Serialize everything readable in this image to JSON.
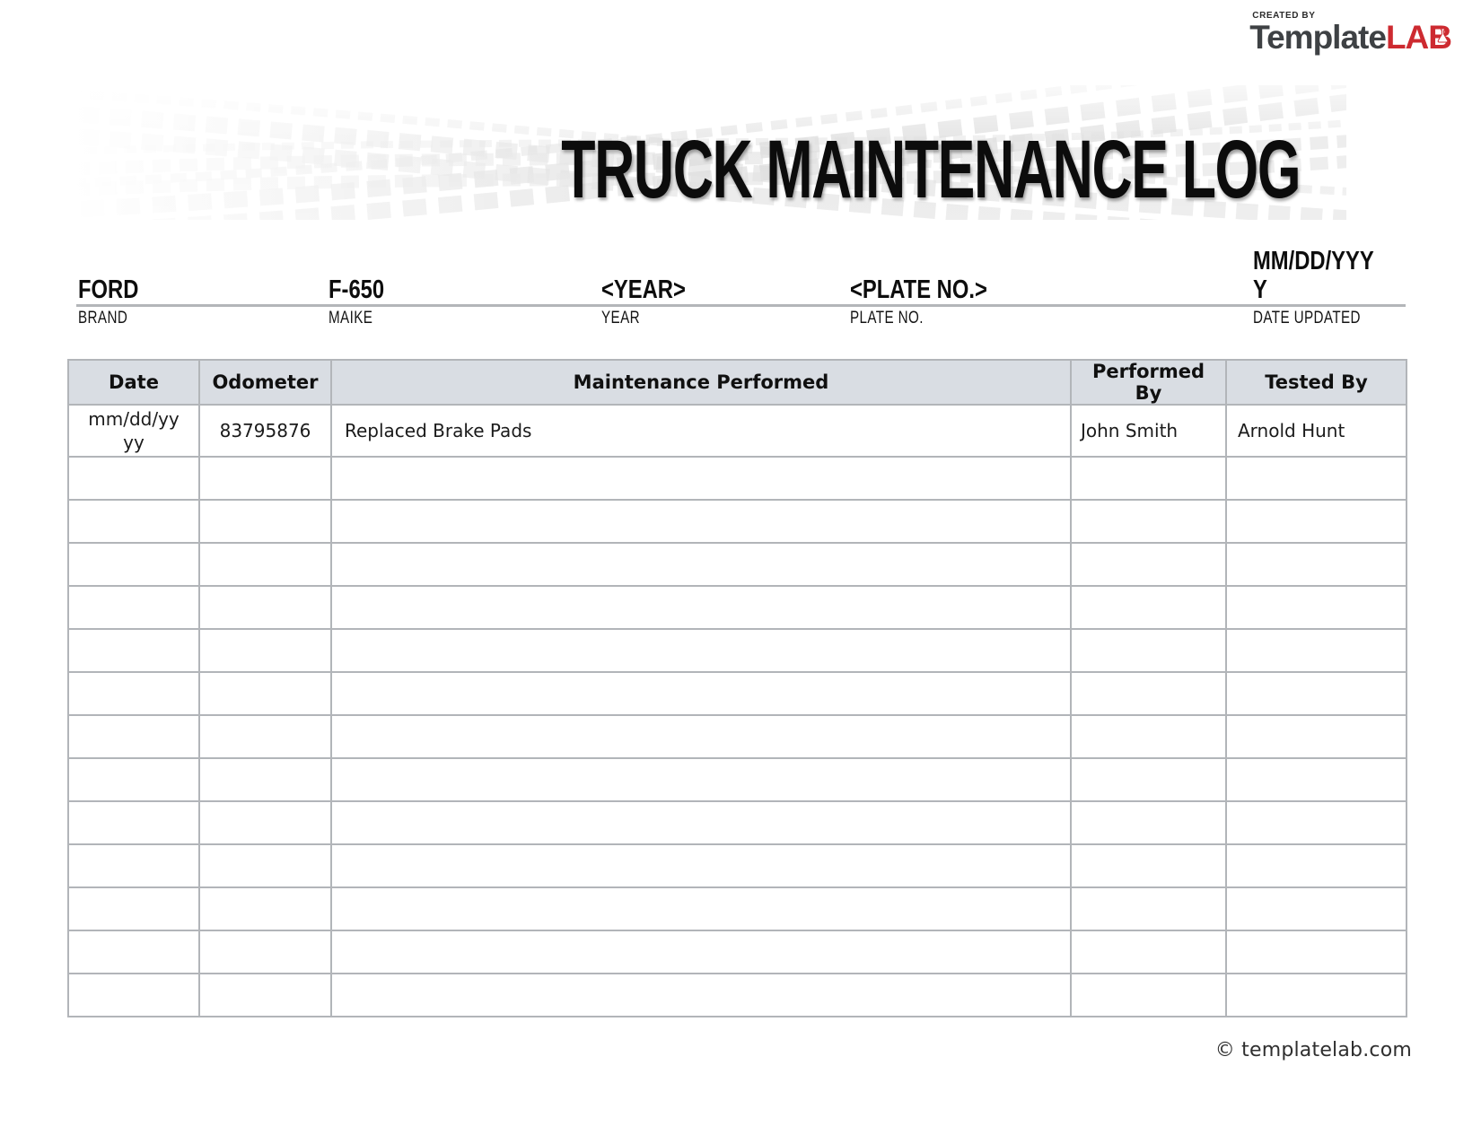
{
  "logo": {
    "created_by": "CREATED BY",
    "brand_dark": "Template",
    "brand_red": "LAB"
  },
  "banner": {
    "title": "TRUCK MAINTENANCE LOG"
  },
  "vehicle_info": {
    "fields": [
      {
        "value": "FORD",
        "label": "BRAND"
      },
      {
        "value": "F-650",
        "label": "MAIKE"
      },
      {
        "value": "<YEAR>",
        "label": "YEAR"
      },
      {
        "value": "<PLATE NO.>",
        "label": "PLATE NO."
      },
      {
        "value": "MM/DD/YYYY",
        "label": "DATE UPDATED"
      }
    ]
  },
  "table": {
    "columns": [
      "Date",
      "Odometer",
      "Maintenance Performed",
      "Performed By",
      "Tested By"
    ],
    "rows": [
      [
        "mm/dd/yyyy",
        "83795876",
        "Replaced Brake Pads",
        "John Smith",
        "Arnold Hunt"
      ]
    ],
    "empty_row_count": 13,
    "header_bg": "#d9dde3",
    "border_color": "#b2b5b9"
  },
  "footer": {
    "copyright": "© templatelab.com"
  }
}
